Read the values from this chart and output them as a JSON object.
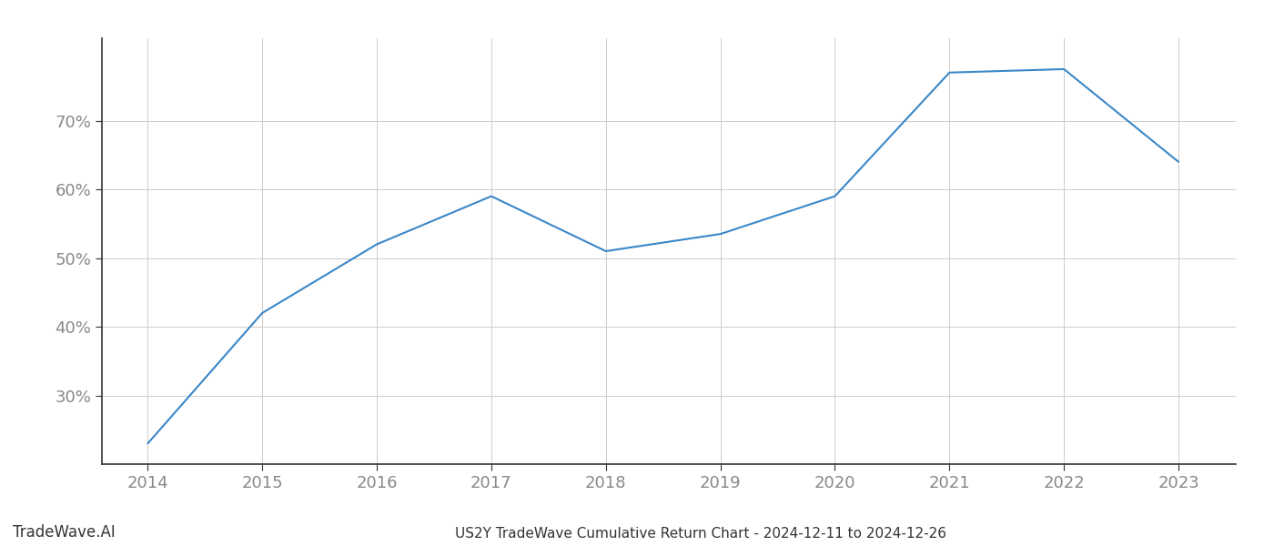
{
  "x": [
    2014,
    2015,
    2016,
    2017,
    2018,
    2019,
    2020,
    2021,
    2022,
    2023
  ],
  "y": [
    23.0,
    42.0,
    52.0,
    59.0,
    51.0,
    53.5,
    59.0,
    77.0,
    77.5,
    64.0
  ],
  "line_color": "#3a87c8",
  "line_width": 1.5,
  "title": "US2Y TradeWave Cumulative Return Chart - 2024-12-11 to 2024-12-26",
  "watermark": "TradeWave.AI",
  "background_color": "#ffffff",
  "grid_color": "#cccccc",
  "ylim": [
    20,
    82
  ],
  "yticks": [
    30,
    40,
    50,
    60,
    70
  ],
  "xlim": [
    2013.6,
    2023.5
  ],
  "xticks": [
    2014,
    2015,
    2016,
    2017,
    2018,
    2019,
    2020,
    2021,
    2022,
    2023
  ],
  "axis_color": "#888888",
  "label_fontsize": 13,
  "watermark_fontsize": 12,
  "title_fontsize": 11,
  "tick_label_color": "#888888"
}
